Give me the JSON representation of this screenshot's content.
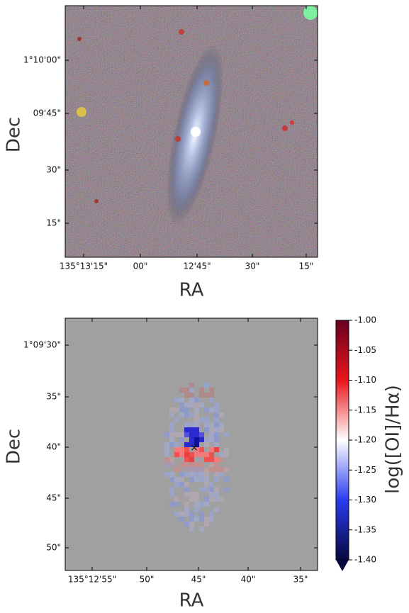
{
  "top_panel": {
    "x_label": "RA",
    "y_label": "Dec",
    "x_ticks": [
      "135°13'15\"",
      "00\"",
      "12'45\"",
      "30\"",
      "15\""
    ],
    "y_ticks": [
      "1°10'00\"",
      "09'45\"",
      "30\"",
      "15\""
    ]
  },
  "bottom_panel": {
    "x_label": "RA",
    "y_label": "Dec",
    "x_ticks": [
      "135°12'55\"",
      "50\"",
      "45\"",
      "40\"",
      "35\""
    ],
    "y_ticks": [
      "1°09'30\"",
      "35\"",
      "40\"",
      "45\"",
      "50\""
    ],
    "colorbar": {
      "label": "log([OI]/Hα)",
      "lim": [
        -1.4,
        -1.0
      ],
      "ticks": [
        {
          "value": -1.0,
          "label": "-1.00"
        },
        {
          "value": -1.05,
          "label": "-1.05"
        },
        {
          "value": -1.1,
          "label": "-1.10"
        },
        {
          "value": -1.15,
          "label": "-1.15"
        },
        {
          "value": -1.2,
          "label": "-1.20"
        },
        {
          "value": -1.25,
          "label": "-1.25"
        },
        {
          "value": -1.3,
          "label": "-1.30"
        },
        {
          "value": -1.35,
          "label": "-1.35"
        },
        {
          "value": -1.4,
          "label": "-1.40"
        }
      ]
    }
  }
}
